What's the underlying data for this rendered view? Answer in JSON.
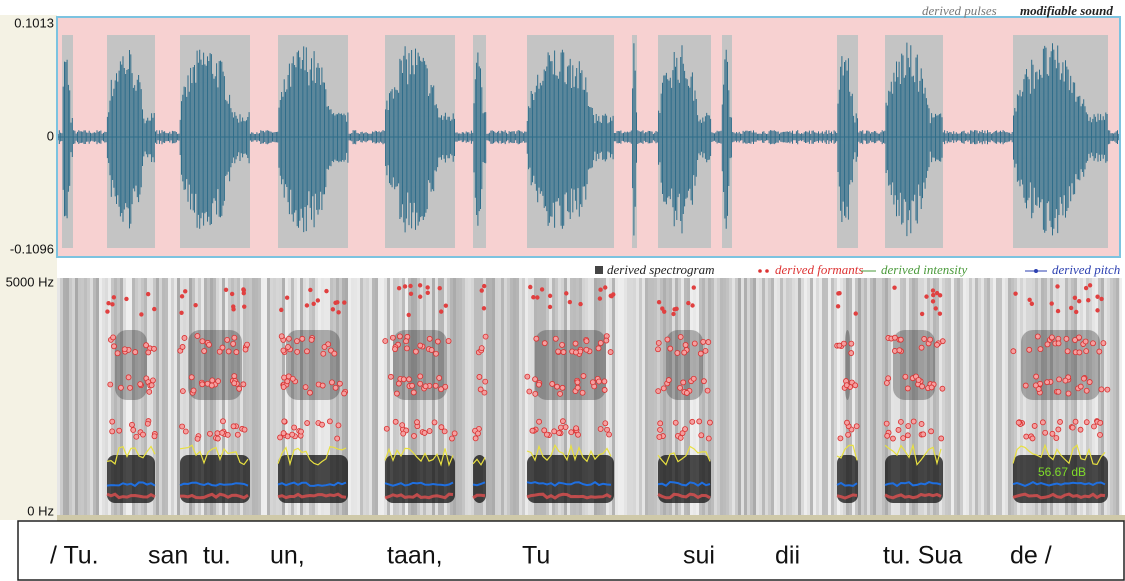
{
  "waveform": {
    "max_label": "0.1013",
    "zero_label": "0",
    "min_label": "-0.1096"
  },
  "top_legend": [
    "derived pulses",
    "modifiable sound"
  ],
  "spectrogram": {
    "top_label": "5000 Hz",
    "bottom_label": "0 Hz",
    "side_label": "56.67 dB"
  },
  "spectrogram_legend": [
    "derived spectrogram",
    "derived formants",
    "derived intensity",
    "derived pitch"
  ],
  "transcript": [
    "/ Tu.",
    "san",
    "tu.",
    "un,",
    "taan,",
    "Tu",
    "sui",
    "dii",
    "tu. Sua",
    "de /"
  ]
}
